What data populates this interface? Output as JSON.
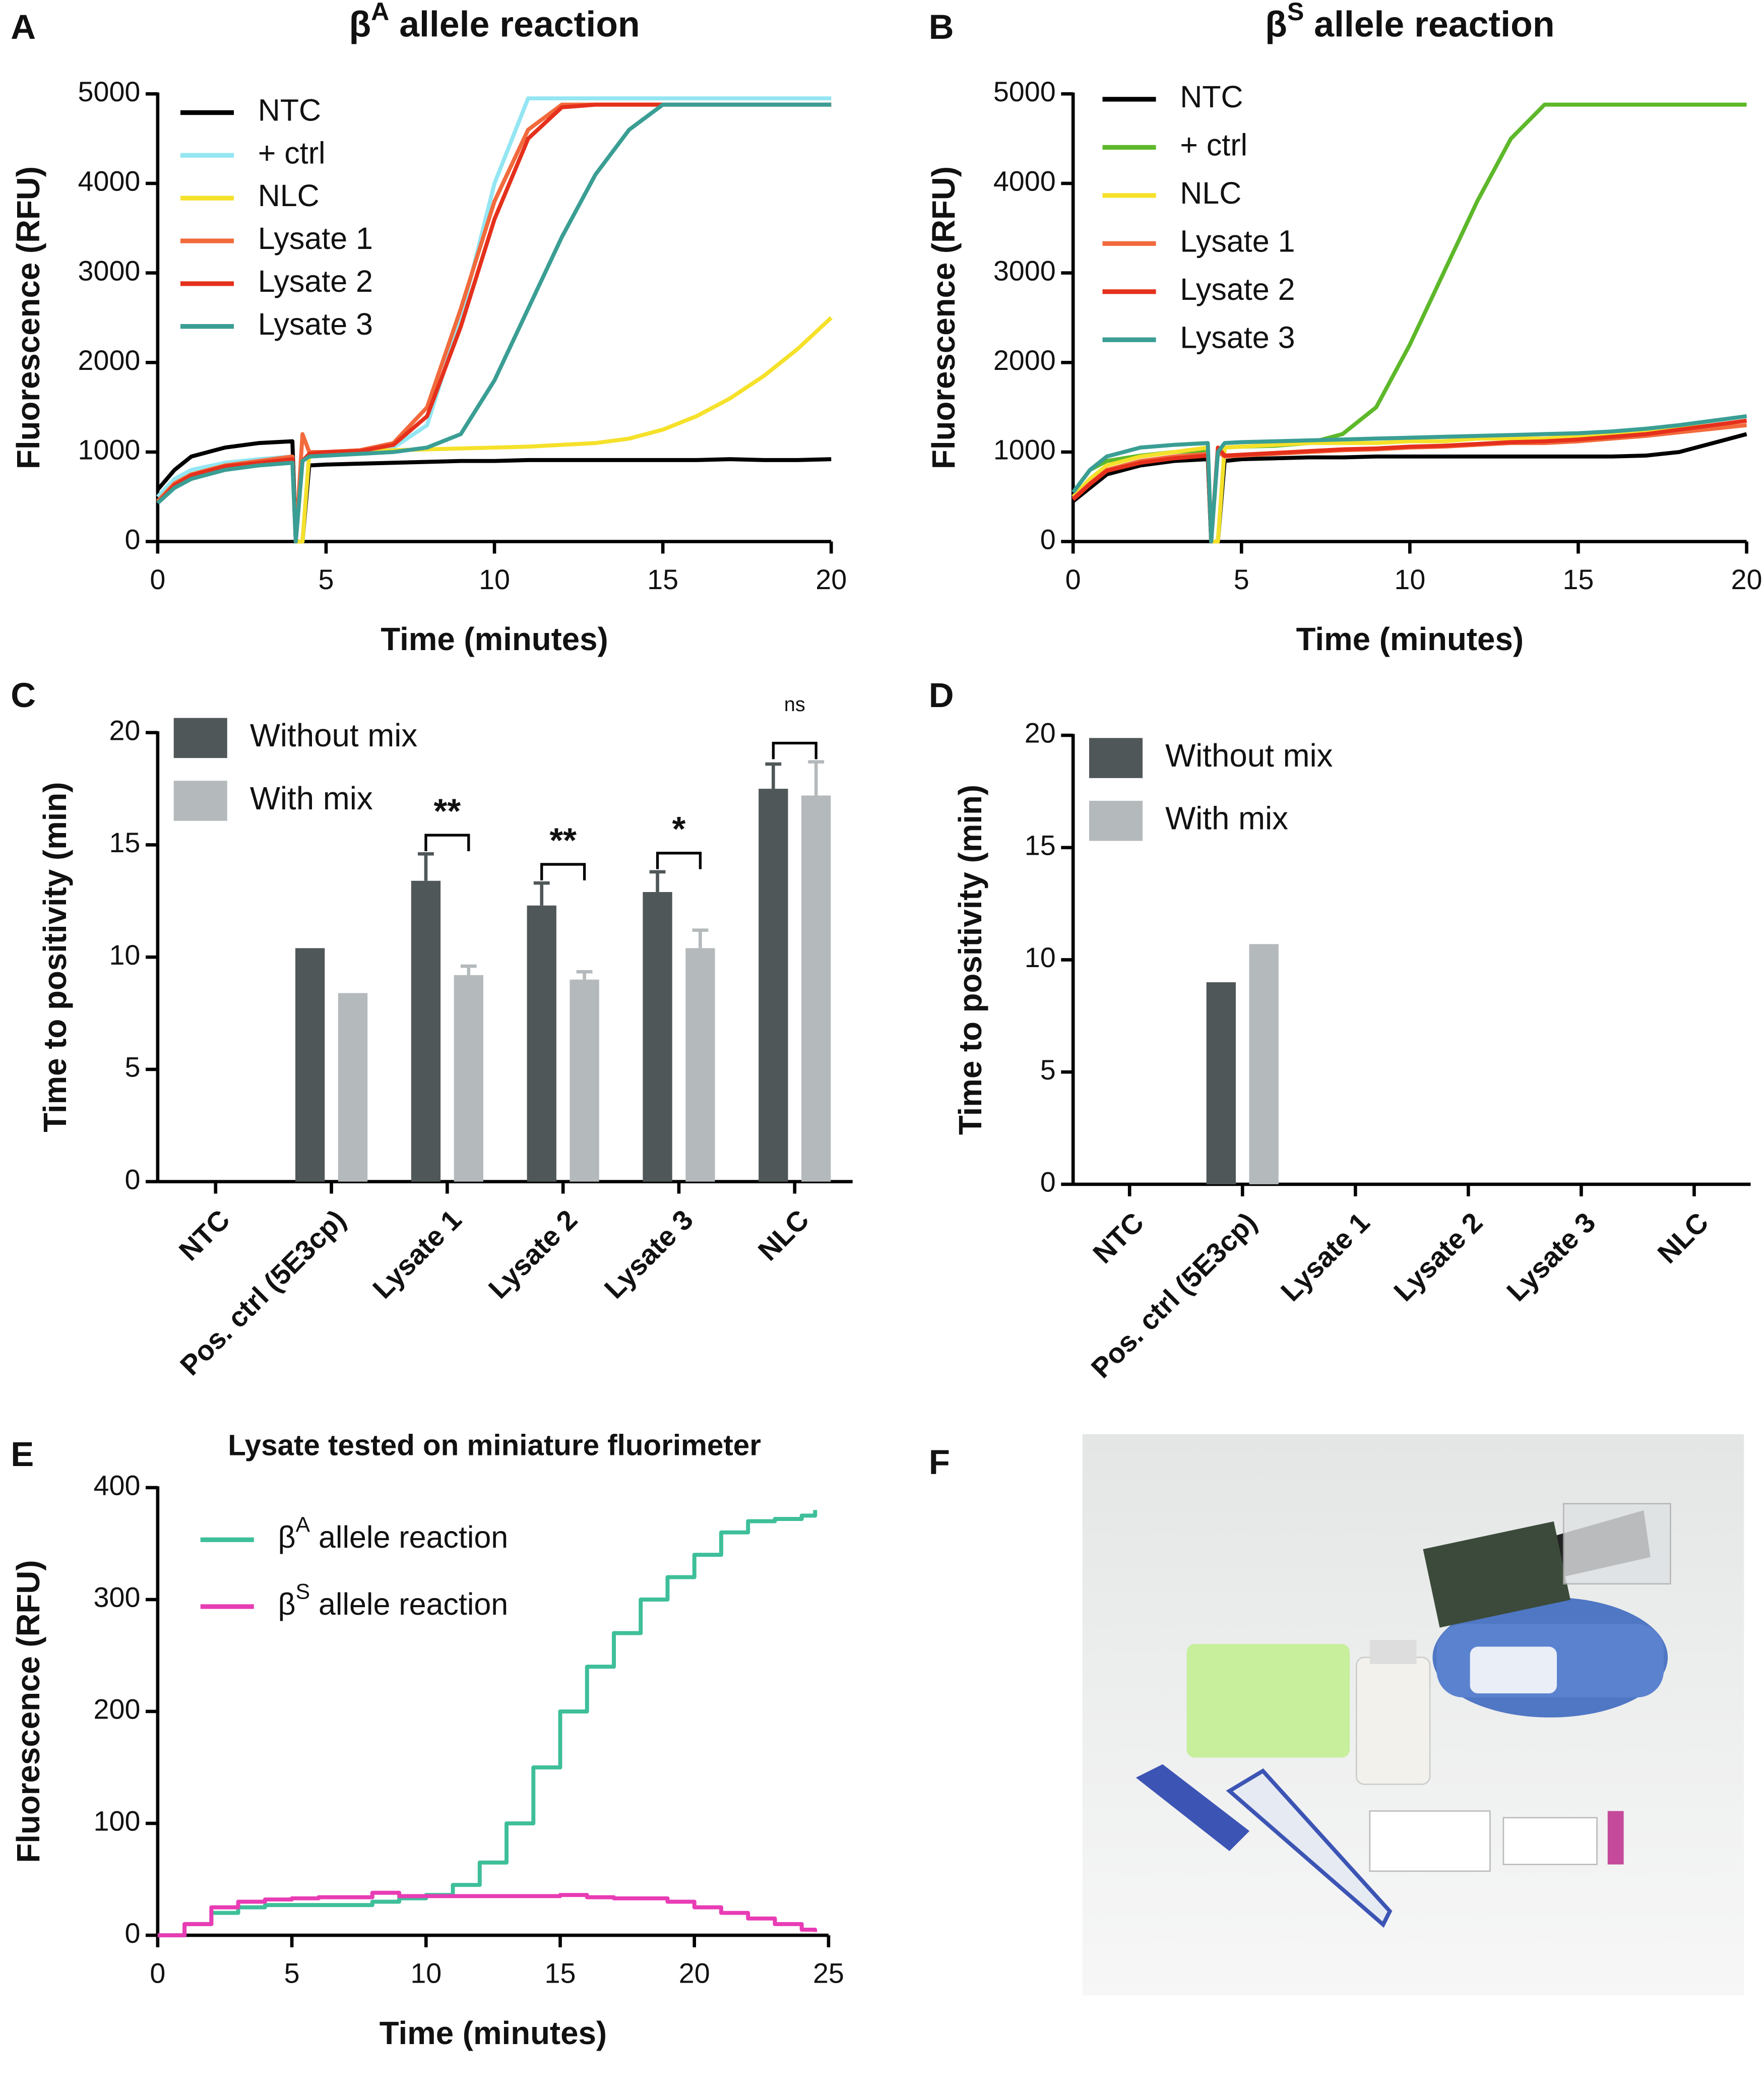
{
  "chart_data": [
    {
      "type": "line",
      "panel_label": "A",
      "title": "βA allele reaction",
      "xlabel": "Time (minutes)",
      "ylabel": "Fluorescence (RFU)",
      "x": [
        0,
        0.5,
        1,
        2,
        3,
        4,
        4.1,
        4.3,
        4.5,
        5,
        6,
        7,
        8,
        9,
        10,
        11,
        12,
        13,
        14,
        15,
        16,
        17,
        18,
        19,
        20
      ],
      "xlim": [
        0,
        20
      ],
      "xticks": [
        0,
        5,
        10,
        15,
        20
      ],
      "ylim": [
        0,
        5000
      ],
      "yticks": [
        0,
        1000,
        2000,
        3000,
        4000,
        5000
      ],
      "legend": "top-left",
      "series": [
        {
          "name": "NTC",
          "color": "#000000",
          "values": [
            580,
            800,
            950,
            1050,
            1100,
            1120,
            0,
            0,
            850,
            860,
            870,
            880,
            890,
            900,
            900,
            910,
            910,
            910,
            910,
            910,
            910,
            920,
            910,
            910,
            920
          ]
        },
        {
          "name": "+ ctrl",
          "color": "#93e6f2",
          "values": [
            500,
            700,
            800,
            880,
            920,
            950,
            0,
            0,
            1000,
            1000,
            1020,
            1050,
            1300,
            2500,
            4000,
            4950,
            4950,
            4950,
            4950,
            4950,
            4950,
            4950,
            4950,
            4950,
            4950
          ]
        },
        {
          "name": "NLC",
          "color": "#f5e12a",
          "values": [
            450,
            650,
            750,
            850,
            880,
            900,
            0,
            0,
            980,
            1000,
            1010,
            1020,
            1030,
            1040,
            1050,
            1060,
            1080,
            1100,
            1150,
            1250,
            1400,
            1600,
            1850,
            2150,
            2500
          ]
        },
        {
          "name": "Lysate 1",
          "color": "#f26a3c",
          "values": [
            450,
            650,
            750,
            850,
            900,
            950,
            0,
            1200,
            1000,
            1000,
            1020,
            1100,
            1500,
            2600,
            3800,
            4600,
            4880,
            4880,
            4880,
            4880,
            4880,
            4880,
            4880,
            4880,
            4880
          ]
        },
        {
          "name": "Lysate 2",
          "color": "#e5301c",
          "values": [
            430,
            630,
            740,
            840,
            880,
            920,
            0,
            900,
            980,
            1000,
            1010,
            1080,
            1400,
            2400,
            3600,
            4500,
            4850,
            4880,
            4880,
            4880,
            4880,
            4880,
            4880,
            4880,
            4880
          ]
        },
        {
          "name": "Lysate 3",
          "color": "#3a9e94",
          "values": [
            430,
            600,
            700,
            800,
            850,
            880,
            0,
            900,
            950,
            960,
            980,
            1000,
            1050,
            1200,
            1800,
            2600,
            3400,
            4100,
            4600,
            4880,
            4880,
            4880,
            4880,
            4880,
            4880
          ]
        }
      ]
    },
    {
      "type": "line",
      "panel_label": "B",
      "title": "βS allele reaction",
      "xlabel": "Time (minutes)",
      "ylabel": "Fluorescence (RFU)",
      "x": [
        0,
        0.5,
        1,
        2,
        3,
        4,
        4.1,
        4.3,
        4.5,
        5,
        6,
        7,
        8,
        9,
        10,
        11,
        12,
        13,
        14,
        15,
        16,
        17,
        18,
        19,
        20
      ],
      "xlim": [
        0,
        20
      ],
      "xticks": [
        0,
        5,
        10,
        15,
        20
      ],
      "ylim": [
        0,
        5000
      ],
      "yticks": [
        0,
        1000,
        2000,
        3000,
        4000,
        5000
      ],
      "legend": "top-left",
      "series": [
        {
          "name": "NTC",
          "color": "#000000",
          "values": [
            450,
            600,
            750,
            850,
            900,
            920,
            0,
            0,
            900,
            920,
            930,
            940,
            940,
            950,
            950,
            950,
            950,
            950,
            950,
            950,
            950,
            960,
            1000,
            1100,
            1200
          ]
        },
        {
          "name": "+ ctrl",
          "color": "#5db82a",
          "values": [
            550,
            800,
            900,
            960,
            1000,
            1020,
            0,
            0,
            1050,
            1060,
            1070,
            1100,
            1200,
            1500,
            2200,
            3000,
            3800,
            4500,
            4880,
            4880,
            4880,
            4880,
            4880,
            4880,
            4880
          ]
        },
        {
          "name": "NLC",
          "color": "#f5e12a",
          "values": [
            500,
            700,
            850,
            950,
            1000,
            1050,
            0,
            0,
            1050,
            1060,
            1080,
            1100,
            1100,
            1100,
            1120,
            1120,
            1150,
            1150,
            1150,
            1180,
            1200,
            1220,
            1260,
            1300,
            1350
          ]
        },
        {
          "name": "Lysate 1",
          "color": "#f26a3c",
          "values": [
            480,
            650,
            800,
            900,
            950,
            980,
            0,
            1000,
            950,
            960,
            980,
            1000,
            1020,
            1030,
            1050,
            1060,
            1080,
            1100,
            1100,
            1120,
            1150,
            1180,
            1220,
            1260,
            1300
          ]
        },
        {
          "name": "Lysate 2",
          "color": "#e5301c",
          "values": [
            470,
            640,
            790,
            880,
            930,
            960,
            0,
            1050,
            960,
            970,
            990,
            1010,
            1030,
            1040,
            1060,
            1070,
            1090,
            1110,
            1120,
            1140,
            1170,
            1200,
            1250,
            1300,
            1350
          ]
        },
        {
          "name": "Lysate 3",
          "color": "#3a9e94",
          "values": [
            550,
            800,
            950,
            1050,
            1080,
            1100,
            0,
            1000,
            1100,
            1110,
            1120,
            1130,
            1140,
            1150,
            1160,
            1170,
            1180,
            1190,
            1200,
            1210,
            1230,
            1260,
            1300,
            1350,
            1400
          ]
        }
      ]
    },
    {
      "type": "bar",
      "panel_label": "C",
      "ylabel": "Time to positivity (min)",
      "categories": [
        "NTC",
        "Pos. ctrl (5E3cp)",
        "Lysate 1",
        "Lysate 2",
        "Lysate 3",
        "NLC"
      ],
      "ylim": [
        0,
        20
      ],
      "yticks": [
        0,
        5,
        10,
        15,
        20
      ],
      "legend": "top-left",
      "series": [
        {
          "name": "Without mix",
          "color": "#505759",
          "values": [
            null,
            10.4,
            13.4,
            12.3,
            12.9,
            17.5
          ],
          "errors": [
            null,
            null,
            1.2,
            1.0,
            0.9,
            1.1
          ]
        },
        {
          "name": "With mix",
          "color": "#b4b9bc",
          "values": [
            null,
            8.4,
            9.2,
            9.0,
            10.4,
            17.2
          ],
          "errors": [
            null,
            null,
            0.4,
            0.35,
            0.8,
            1.5
          ]
        }
      ],
      "significance": [
        null,
        null,
        "**",
        "**",
        "*",
        "ns"
      ]
    },
    {
      "type": "bar",
      "panel_label": "D",
      "ylabel": "Time to positivity (min)",
      "categories": [
        "NTC",
        "Pos. ctrl (5E3cp)",
        "Lysate 1",
        "Lysate 2",
        "Lysate 3",
        "NLC"
      ],
      "ylim": [
        0,
        20
      ],
      "yticks": [
        0,
        5,
        10,
        15,
        20
      ],
      "legend": "top-left",
      "series": [
        {
          "name": "Without mix",
          "color": "#505759",
          "values": [
            null,
            9.0,
            null,
            null,
            null,
            null
          ]
        },
        {
          "name": "With mix",
          "color": "#b4b9bc",
          "values": [
            null,
            10.7,
            null,
            null,
            null,
            null
          ]
        }
      ]
    },
    {
      "type": "line",
      "panel_label": "E",
      "title": "Lysate tested on miniature fluorimeter",
      "xlabel": "Time (minutes)",
      "ylabel": "Fluorescence (RFU)",
      "x": [
        0,
        1,
        2,
        3,
        4,
        5,
        6,
        7,
        8,
        9,
        10,
        11,
        12,
        13,
        14,
        15,
        16,
        17,
        18,
        19,
        20,
        21,
        22,
        23,
        24,
        24.5
      ],
      "xlim": [
        0,
        25
      ],
      "xticks": [
        0,
        5,
        10,
        15,
        20,
        25
      ],
      "ylim": [
        0,
        400
      ],
      "yticks": [
        0,
        100,
        200,
        300,
        400
      ],
      "legend": "top-left",
      "step": true,
      "series": [
        {
          "name": "βA allele reaction",
          "color": "#3ebf9a",
          "values": [
            0,
            10,
            20,
            25,
            27,
            27,
            27,
            27,
            30,
            33,
            36,
            45,
            65,
            100,
            150,
            200,
            240,
            270,
            300,
            320,
            340,
            360,
            370,
            372,
            375,
            380
          ]
        },
        {
          "name": "βS allele reaction",
          "color": "#e83cb4",
          "values": [
            0,
            10,
            25,
            30,
            32,
            33,
            34,
            34,
            38,
            35,
            35,
            35,
            35,
            35,
            35,
            36,
            34,
            33,
            33,
            30,
            25,
            20,
            15,
            10,
            5,
            3
          ]
        }
      ]
    }
  ],
  "photo_panel": {
    "label": "F"
  }
}
